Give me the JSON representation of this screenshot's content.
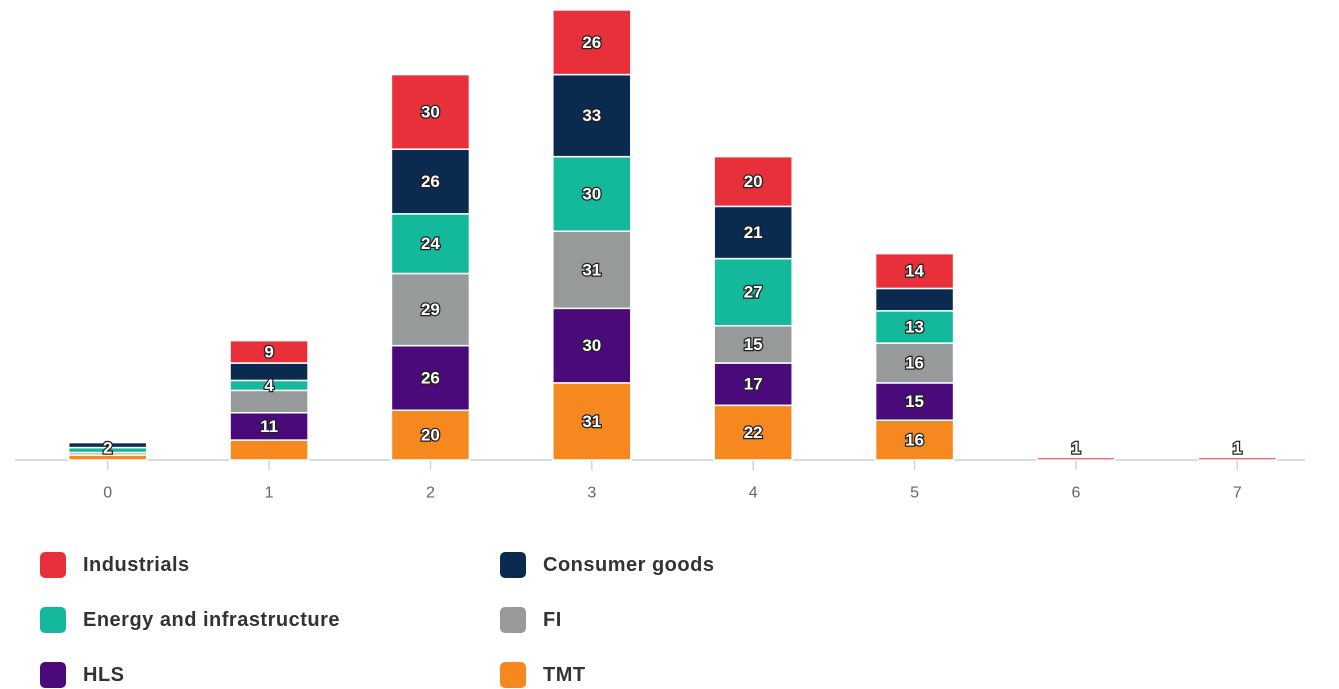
{
  "chart_data": {
    "type": "stacked_bar",
    "categories": [
      "0",
      "1",
      "2",
      "3",
      "4",
      "5",
      "6",
      "7"
    ],
    "ylim": [
      0,
      185
    ],
    "series": [
      {
        "name": "TMT",
        "color": "#f5891f",
        "values": [
          2,
          8,
          20,
          31,
          22,
          16,
          0,
          0
        ],
        "value_labels": [
          null,
          null,
          "20",
          "31",
          "22",
          "16",
          null,
          null
        ]
      },
      {
        "name": "HLS",
        "color": "#4b0a7a",
        "values": [
          0,
          11,
          26,
          30,
          17,
          15,
          0,
          0
        ],
        "value_labels": [
          null,
          "11",
          "26",
          "30",
          "17",
          "15",
          null,
          null
        ]
      },
      {
        "name": "FI",
        "color": "#969a9b",
        "values": [
          1,
          9,
          29,
          31,
          15,
          16,
          0,
          0
        ],
        "value_labels": [
          null,
          null,
          "29",
          "31",
          "15",
          "16",
          null,
          null
        ]
      },
      {
        "name": "Energy and infrastructure",
        "color": "#14b89a",
        "values": [
          2,
          4,
          24,
          30,
          27,
          13,
          0,
          0
        ],
        "value_labels": [
          "2",
          "4",
          "24",
          "30",
          "27",
          "13",
          null,
          null
        ]
      },
      {
        "name": "Consumer goods",
        "color": "#0b2a4f",
        "values": [
          2,
          7,
          26,
          33,
          21,
          9,
          0,
          0
        ],
        "value_labels": [
          null,
          null,
          "26",
          "33",
          "21",
          null,
          null,
          null
        ]
      },
      {
        "name": "Industrials",
        "color": "#e8303a",
        "values": [
          0,
          9,
          30,
          26,
          20,
          14,
          1,
          1
        ],
        "value_labels": [
          null,
          "9",
          "30",
          "26",
          "20",
          "14",
          "1",
          "1"
        ]
      }
    ],
    "legend_order": [
      5,
      4,
      3,
      2,
      1,
      0
    ]
  }
}
